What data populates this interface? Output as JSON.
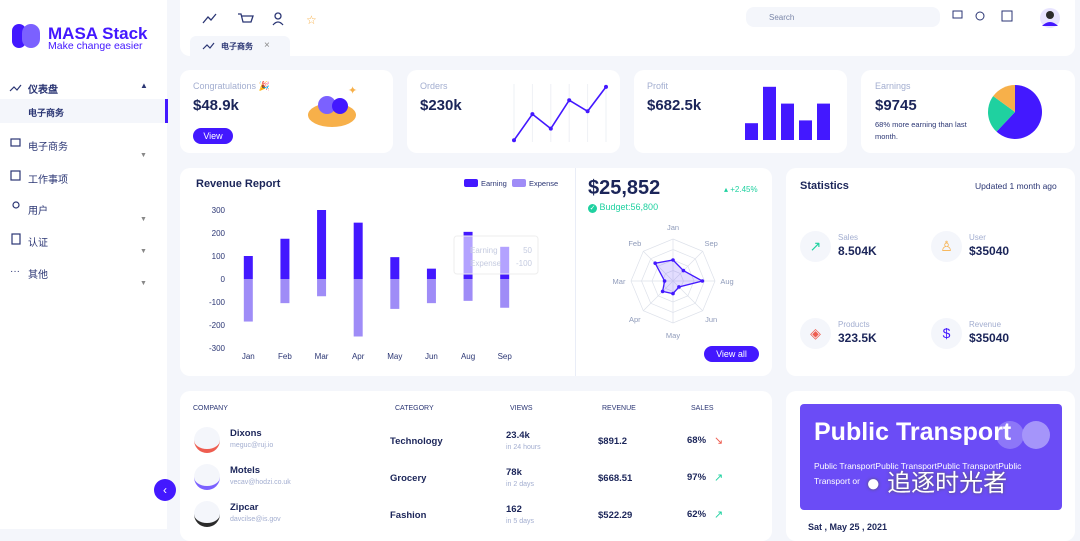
{
  "sidebar": {
    "logo_title": "MASA Stack",
    "logo_subtitle": "Make change easier",
    "menu": [
      {
        "label": "仪表盘",
        "children": [
          "电子商务"
        ]
      },
      {
        "label": "电子商务"
      },
      {
        "label": "工作事项"
      },
      {
        "label": "用户"
      },
      {
        "label": "认证"
      },
      {
        "label": "其他"
      }
    ]
  },
  "topbar": {
    "search_placeholder": "Search",
    "tab": "电子商务"
  },
  "congrats": {
    "title": "Congratulations 🎉",
    "value": "$48.9k",
    "button": "View"
  },
  "orders": {
    "title": "Orders",
    "value": "$230k",
    "chart": {
      "type": "line",
      "color": "#4318ff",
      "values": [
        3,
        48,
        23,
        72,
        53,
        95
      ],
      "ylim": [
        0,
        100
      ]
    }
  },
  "profit": {
    "title": "Profit",
    "value": "$682.5k",
    "chart": {
      "type": "bar",
      "color": "#4318ff",
      "values": [
        30,
        95,
        65,
        35,
        65
      ],
      "ylim": [
        0,
        100
      ]
    }
  },
  "earnings": {
    "title": "Earnings",
    "value": "$9745",
    "note": "68% more earning than last month.",
    "chart": {
      "type": "pie",
      "values": [
        62,
        23,
        15
      ],
      "colors": [
        "#4318ff",
        "#1fd1a0",
        "#f7b04a"
      ]
    }
  },
  "revenue_report": {
    "title": "Revenue Report",
    "chart": {
      "type": "bar",
      "categories": [
        "Jan",
        "Feb",
        "Mar",
        "Apr",
        "May",
        "Jun",
        "Aug",
        "Sep"
      ],
      "series": [
        {
          "name": "Earning",
          "color": "#4318ff",
          "values": [
            100,
            175,
            300,
            245,
            95,
            45,
            205,
            140
          ]
        },
        {
          "name": "Expense",
          "color": "#9f8cf7",
          "values": [
            -185,
            -105,
            -75,
            -250,
            -130,
            -105,
            -95,
            -125
          ]
        }
      ],
      "ylim": [
        -300,
        300
      ],
      "yticks": [
        300,
        200,
        100,
        0,
        -100,
        -200,
        -300
      ]
    },
    "tooltip": [
      {
        "label": "Earning",
        "value": "50"
      },
      {
        "label": "Expense",
        "value": "-100"
      }
    ]
  },
  "budget": {
    "value": "$25,852",
    "change": "+2.45%",
    "budget": "Budget:56,800",
    "button": "View all",
    "chart": {
      "type": "radar",
      "color": "#4318ff",
      "categories": [
        "Jan",
        "Sep",
        "Aug",
        "Jun",
        "May",
        "Apr",
        "Mar",
        "Feb"
      ],
      "values": [
        50,
        35,
        70,
        20,
        30,
        35,
        20,
        60
      ],
      "rlim": [
        0,
        100
      ]
    }
  },
  "statistics": {
    "title": "Statistics",
    "updated": "Updated 1 month ago",
    "items": [
      {
        "label": "Sales",
        "value": "8.504K"
      },
      {
        "label": "User",
        "value": "$35040"
      },
      {
        "label": "Products",
        "value": "323.5K"
      },
      {
        "label": "Revenue",
        "value": "$35040"
      }
    ]
  },
  "table": {
    "headers": [
      "COMPANY",
      "CATEGORY",
      "VIEWS",
      "REVENUE",
      "SALES"
    ],
    "rows": [
      {
        "name": "Dixons",
        "email": "meguc@ruj.io",
        "category": "Technology",
        "views": "23.4k",
        "period": "in 24 hours",
        "revenue": "$891.2",
        "sales": "68%"
      },
      {
        "name": "Motels",
        "email": "vecav@hodzi.co.uk",
        "category": "Grocery",
        "views": "78k",
        "period": "in 2 days",
        "revenue": "$668.51",
        "sales": "97%"
      },
      {
        "name": "Zipcar",
        "email": "davcilse@is.gov",
        "category": "Fashion",
        "views": "162",
        "period": "in 5 days",
        "revenue": "$522.29",
        "sales": "62%"
      }
    ]
  },
  "promo": {
    "title": "Public Transport",
    "text": "Public TransportPublic TransportPublic TransportPublic Transport or",
    "date": "Sat , May 25 , 2021"
  },
  "watermark": "追逐时光者"
}
